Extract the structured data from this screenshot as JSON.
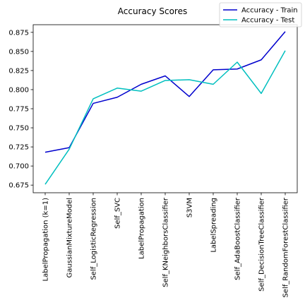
{
  "chart_data": {
    "type": "line",
    "title": "Accuracy Scores",
    "xlabel": "",
    "ylabel": "",
    "categories": [
      "LabelPropagation (k=1)",
      "GaussianMixtureModel",
      "Self_LogisticRegression",
      "Self_SVC",
      "LabelPropagation",
      "Self_KNeighborsClassifier",
      "S3VM",
      "LabelSpreading",
      "Self_AdaBoostClassifier",
      "Self_DecisionTreeClassifier",
      "Self_RandomForestClassifier"
    ],
    "series": [
      {
        "name": "Accuracy - Train",
        "color": "#0000cd",
        "values": [
          0.718,
          0.724,
          0.782,
          0.79,
          0.807,
          0.818,
          0.791,
          0.826,
          0.827,
          0.839,
          0.876
        ]
      },
      {
        "name": "Accuracy - Test",
        "color": "#00bfbf",
        "values": [
          0.676,
          0.722,
          0.788,
          0.802,
          0.798,
          0.812,
          0.813,
          0.807,
          0.836,
          0.795,
          0.851
        ]
      }
    ],
    "ylim": [
      0.665,
      0.885
    ],
    "yticks": [
      0.675,
      0.7,
      0.725,
      0.75,
      0.775,
      0.8,
      0.825,
      0.85,
      0.875
    ],
    "ytick_labels": [
      "0.675",
      "0.700",
      "0.725",
      "0.750",
      "0.775",
      "0.800",
      "0.825",
      "0.850",
      "0.875"
    ],
    "grid": false,
    "legend_position": "top-right"
  }
}
